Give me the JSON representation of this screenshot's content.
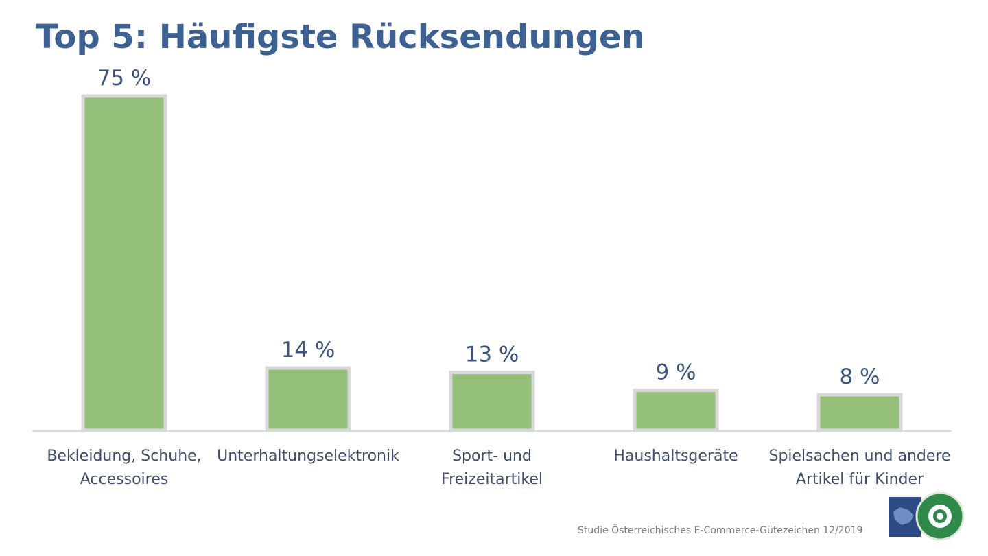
{
  "chart_data": {
    "type": "bar",
    "title": "Top 5: Häufigste Rücksendungen",
    "categories": [
      "Bekleidung, Schuhe, Accessoires",
      "Unterhaltungselektronik",
      "Sport- und Freizeitartikel",
      "Haushaltsgeräte",
      "Spielsachen und andere Artikel für Kinder"
    ],
    "values": [
      75,
      14,
      13,
      9,
      8
    ],
    "value_labels": [
      "75 %",
      "14 %",
      "13 %",
      "9 %",
      "8 %"
    ],
    "color": "#93bf78",
    "ylim": [
      0,
      80
    ],
    "source": "Studie Österreichisches E-Commerce-Gütezeichen 12/2019"
  }
}
